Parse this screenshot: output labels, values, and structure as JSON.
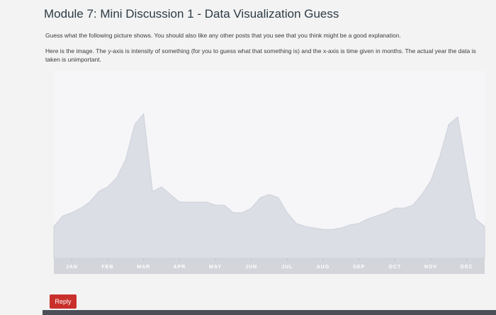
{
  "header": {
    "title": "Module 7: Mini Discussion 1 - Data Visualization Guess"
  },
  "paragraphs": [
    "Guess what the following picture shows. You should also like any other posts that you see that you think might be a good explanation.",
    "Here is the image. The y-axis is intensity of something (for you to guess what that something is) and the x-axis is time given in months. The actual year the data is taken is unimportant."
  ],
  "chart_data": {
    "type": "area",
    "color": "#dcdee6",
    "x": [
      0,
      0.25,
      0.5,
      0.75,
      1,
      1.25,
      1.5,
      1.75,
      2,
      2.25,
      2.5,
      2.75,
      3,
      3.25,
      3.5,
      3.75,
      4,
      4.25,
      4.5,
      4.75,
      5,
      5.25,
      5.5,
      5.75,
      6,
      6.25,
      6.5,
      6.75,
      7,
      7.25,
      7.5,
      7.75,
      8,
      8.25,
      8.5,
      8.75,
      9,
      9.25,
      9.5,
      9.75,
      10,
      10.25,
      10.5,
      10.75,
      11,
      11.25,
      11.5,
      11.75,
      12
    ],
    "values": [
      21,
      28,
      30,
      33,
      37,
      44,
      47,
      53,
      65,
      88,
      95,
      44,
      47,
      42,
      37,
      37,
      37,
      37,
      35,
      35,
      30,
      30,
      33,
      40,
      42,
      40,
      30,
      23,
      21,
      20,
      19,
      19,
      20,
      22,
      23,
      26,
      28,
      30,
      33,
      33,
      35,
      42,
      51,
      67,
      88,
      93,
      58,
      26,
      21
    ],
    "xlim": [
      0,
      12
    ],
    "ylim": [
      0,
      100
    ],
    "xticks": [
      {
        "value": 0.5,
        "label": "JAN"
      },
      {
        "value": 1.5,
        "label": "FEB"
      },
      {
        "value": 2.5,
        "label": "MAR"
      },
      {
        "value": 3.5,
        "label": "APR"
      },
      {
        "value": 4.5,
        "label": "MAY"
      },
      {
        "value": 5.5,
        "label": "JUN"
      },
      {
        "value": 6.5,
        "label": "JUL"
      },
      {
        "value": 7.5,
        "label": "AUG"
      },
      {
        "value": 8.5,
        "label": "SEP"
      },
      {
        "value": 9.5,
        "label": "OCT"
      },
      {
        "value": 10.5,
        "label": "NOV"
      },
      {
        "value": 11.5,
        "label": "DEC"
      }
    ]
  },
  "reply_button": "Reply"
}
